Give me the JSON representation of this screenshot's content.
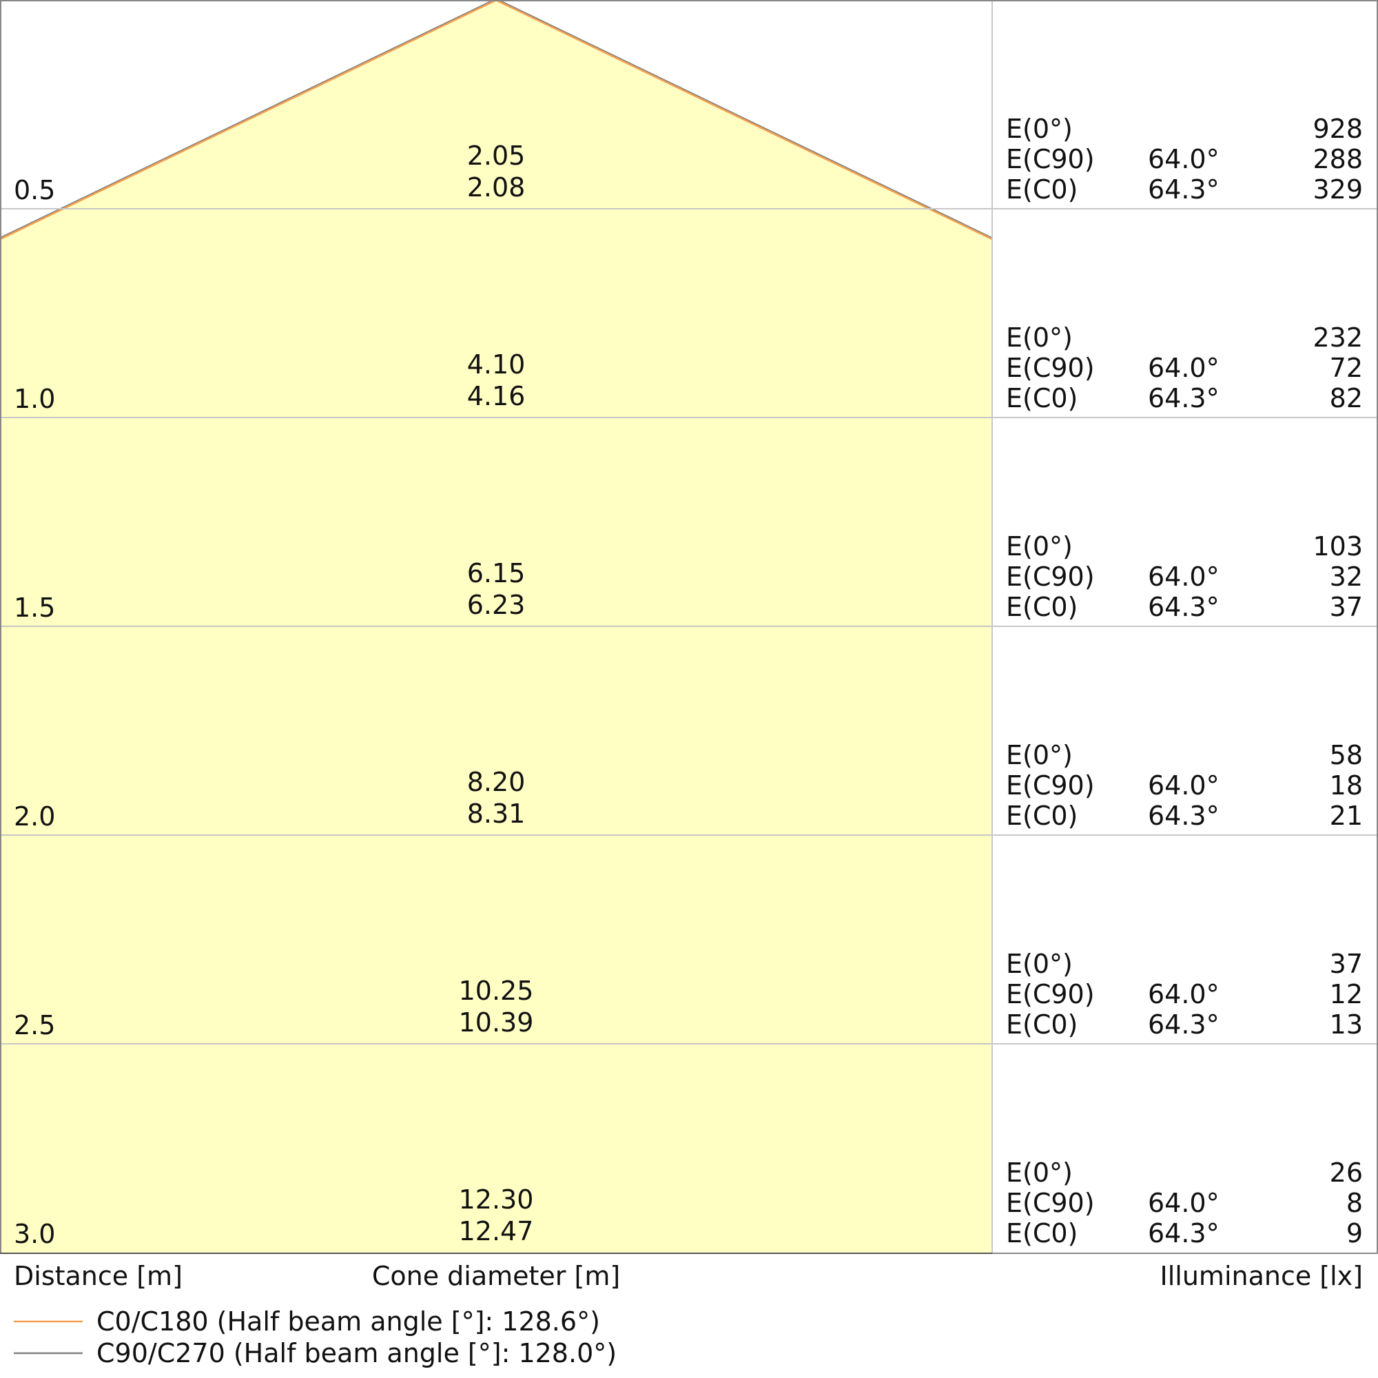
{
  "chart_data": {
    "type": "table",
    "xlabel": "Cone diameter [m]",
    "ylabel": "Distance [m]",
    "right_label": "Illuminance [lx]",
    "colors": {
      "cone_fill": "#ffffc4",
      "c0_line": "#f5a050",
      "c90_line": "#808080",
      "grid": "#c8c8c8"
    },
    "legend": [
      {
        "label": "C0/C180 (Half beam angle [°]: 128.6°)",
        "color": "#f5a050"
      },
      {
        "label": "C90/C270 (Half beam angle [°]: 128.0°)",
        "color": "#808080"
      }
    ],
    "rows": [
      {
        "distance": "0.5",
        "diam_c0": "2.05",
        "diam_c90": "2.08",
        "e0_label": "E(0°)",
        "e0": "928",
        "ec90_label": "E(C90)",
        "ec90_angle": "64.0°",
        "ec90": "288",
        "ec0_label": "E(C0)",
        "ec0_angle": "64.3°",
        "ec0": "329"
      },
      {
        "distance": "1.0",
        "diam_c0": "4.10",
        "diam_c90": "4.16",
        "e0_label": "E(0°)",
        "e0": "232",
        "ec90_label": "E(C90)",
        "ec90_angle": "64.0°",
        "ec90": "72",
        "ec0_label": "E(C0)",
        "ec0_angle": "64.3°",
        "ec0": "82"
      },
      {
        "distance": "1.5",
        "diam_c0": "6.15",
        "diam_c90": "6.23",
        "e0_label": "E(0°)",
        "e0": "103",
        "ec90_label": "E(C90)",
        "ec90_angle": "64.0°",
        "ec90": "32",
        "ec0_label": "E(C0)",
        "ec0_angle": "64.3°",
        "ec0": "37"
      },
      {
        "distance": "2.0",
        "diam_c0": "8.20",
        "diam_c90": "8.31",
        "e0_label": "E(0°)",
        "e0": "58",
        "ec90_label": "E(C90)",
        "ec90_angle": "64.0°",
        "ec90": "18",
        "ec0_label": "E(C0)",
        "ec0_angle": "64.3°",
        "ec0": "21"
      },
      {
        "distance": "2.5",
        "diam_c0": "10.25",
        "diam_c90": "10.39",
        "e0_label": "E(0°)",
        "e0": "37",
        "ec90_label": "E(C90)",
        "ec90_angle": "64.0°",
        "ec90": "12",
        "ec0_label": "E(C0)",
        "ec0_angle": "64.3°",
        "ec0": "13"
      },
      {
        "distance": "3.0",
        "diam_c0": "12.30",
        "diam_c90": "12.47",
        "e0_label": "E(0°)",
        "e0": "26",
        "ec90_label": "E(C90)",
        "ec90_angle": "64.0°",
        "ec90": "8",
        "ec0_label": "E(C0)",
        "ec0_angle": "64.3°",
        "ec0": "9"
      }
    ]
  }
}
